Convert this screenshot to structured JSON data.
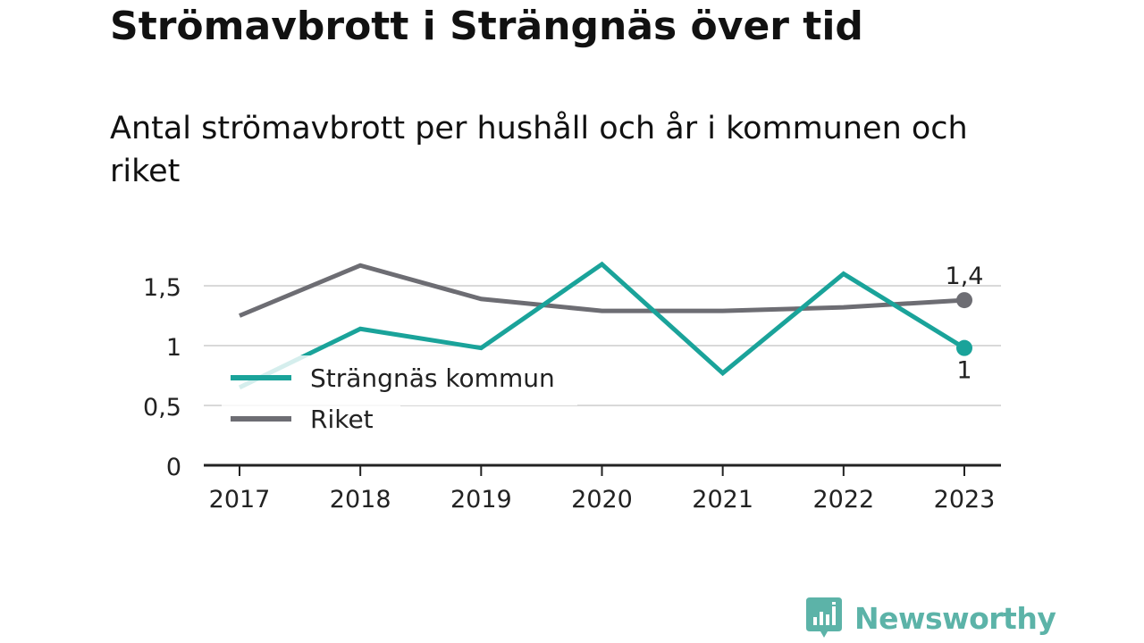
{
  "header": {
    "title": "Strömavbrott i Strängnäs över tid",
    "subtitle": "Antal strömavbrott per hushåll och år i kommunen och riket"
  },
  "chart_data": {
    "type": "line",
    "title": "Strömavbrott i Strängnäs över tid",
    "subtitle": "Antal strömavbrott per hushåll och år i kommunen och riket",
    "x": [
      "2017",
      "2018",
      "2019",
      "2020",
      "2021",
      "2022",
      "2023"
    ],
    "ylim": [
      0,
      1.5
    ],
    "yticks": [
      {
        "value": 0,
        "label": "0"
      },
      {
        "value": 0.5,
        "label": "0,5"
      },
      {
        "value": 1,
        "label": "1"
      },
      {
        "value": 1.5,
        "label": "1,5"
      }
    ],
    "grid": true,
    "legend_position": "bottom-left",
    "series": [
      {
        "name": "Strängnäs kommun",
        "color": "#1aa39a",
        "values": [
          0.65,
          1.14,
          0.98,
          1.68,
          0.77,
          1.6,
          0.98
        ],
        "end_label": "1"
      },
      {
        "name": "Riket",
        "color": "#6d6d73",
        "values": [
          1.25,
          1.67,
          1.39,
          1.29,
          1.29,
          1.32,
          1.38
        ],
        "end_label": "1,4"
      }
    ]
  },
  "logo": {
    "text": "Newsworthy",
    "icon": "newsworthy-bar-chart-icon",
    "color": "#5cb3a8"
  }
}
